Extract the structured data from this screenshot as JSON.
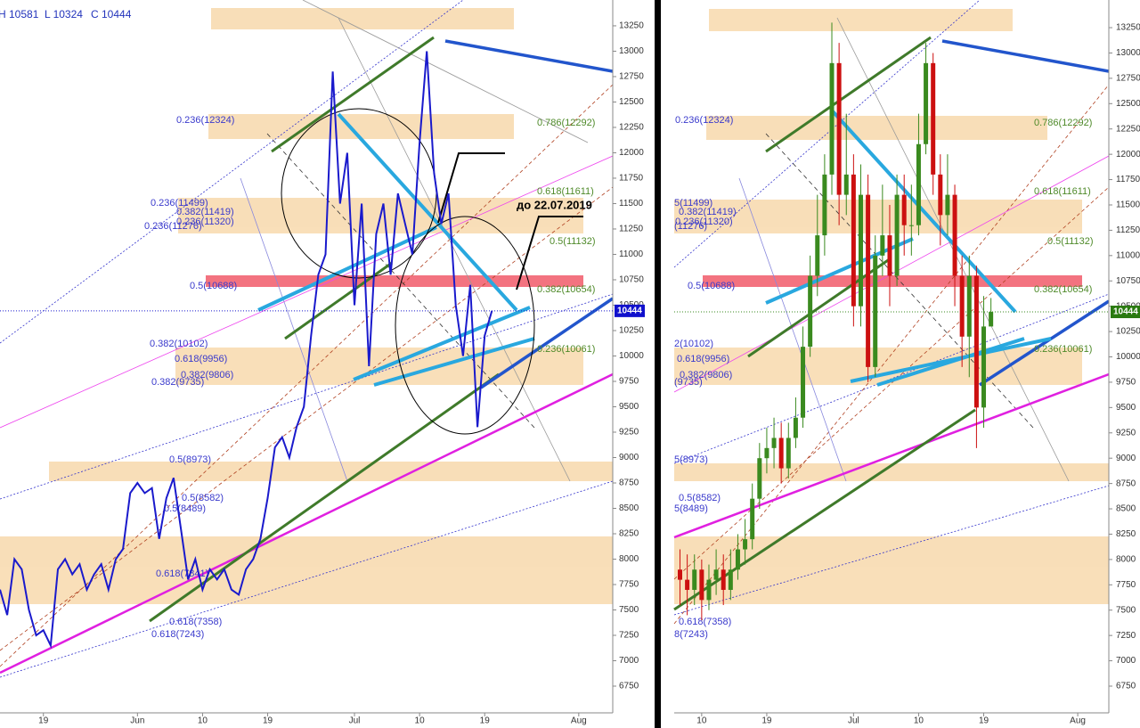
{
  "chart_data": [
    {
      "type": "line",
      "color": "#1a1acc",
      "header": [
        "H 10581",
        "L 10324",
        "C 10444"
      ],
      "annotation": "до 22.07.2019",
      "last_price": 10444,
      "fib_labels": [
        "0.236(12324)",
        "0.786(12292)",
        "0.236(11499)",
        "0.382(11419)",
        "0.236(11320)",
        "0.236(11276)",
        "0.618(11611)",
        "0.5(11132)",
        "0.5(10688)",
        "0.382(10654)",
        "0.382(10102)",
        "0.618(9956)",
        "0.382(9806)",
        "0.382(9735)",
        "0.236(10061)",
        "0.5(8973)",
        "0.5(8582)",
        "0.5(8489)",
        "0.618(7841)",
        "0.618(7358)",
        "0.618(7243)"
      ],
      "x": [
        -6,
        -5,
        -4,
        -3,
        -2,
        -1,
        0,
        1,
        2,
        3,
        4,
        5,
        6,
        7,
        8,
        9,
        10,
        11,
        12,
        13,
        14,
        15,
        16,
        17,
        18,
        19,
        20,
        21,
        22,
        23,
        24,
        25,
        26,
        27,
        28,
        29,
        30,
        31,
        32,
        33,
        34,
        35,
        36,
        37,
        38,
        39,
        40,
        41,
        42,
        43,
        44,
        45,
        46,
        47,
        48,
        49,
        50,
        51,
        52,
        53,
        54,
        55,
        56,
        57,
        58,
        59,
        60,
        61,
        62
      ],
      "values": [
        7700,
        7450,
        8000,
        7900,
        7500,
        7250,
        7300,
        7150,
        7900,
        8000,
        7850,
        7950,
        7700,
        7850,
        7950,
        7700,
        8000,
        8100,
        8650,
        8750,
        8650,
        8700,
        8200,
        8600,
        8800,
        8300,
        7800,
        8000,
        7700,
        7900,
        7800,
        7900,
        7700,
        7650,
        7900,
        8000,
        8200,
        8600,
        9100,
        9200,
        9000,
        9300,
        9500,
        10200,
        10800,
        11000,
        12800,
        11500,
        12000,
        10500,
        11500,
        9900,
        11200,
        11500,
        10800,
        11600,
        11300,
        11000,
        12100,
        13000,
        11800,
        11300,
        11600,
        10500,
        10000,
        10700,
        9300,
        10200,
        10444
      ],
      "xlim": [
        -6,
        78.7
      ],
      "ylim": [
        6487,
        13504
      ],
      "xticks": [
        {
          "value": 0,
          "label": "19"
        },
        {
          "value": 13,
          "label": "Jun"
        },
        {
          "value": 22,
          "label": "10"
        },
        {
          "value": 31,
          "label": "19"
        },
        {
          "value": 43,
          "label": "Jul"
        },
        {
          "value": 52,
          "label": "10"
        },
        {
          "value": 61,
          "label": "19"
        },
        {
          "value": 74,
          "label": "Aug"
        }
      ],
      "yticks": [
        6750,
        7000,
        7250,
        7500,
        7750,
        8000,
        8250,
        8500,
        8750,
        9000,
        9250,
        9500,
        9750,
        10000,
        10250,
        10500,
        10750,
        11000,
        11250,
        11500,
        11750,
        12000,
        12250,
        12500,
        12750,
        13000,
        13250
      ]
    },
    {
      "type": "candlestick",
      "up_color": "#3a8a1f",
      "down_color": "#cc1010",
      "last_price": 10444,
      "fib_labels": [
        "0.236(12324)",
        "0.786(12292)",
        "0.618(11611)",
        "5(11499)",
        "0.382(11419)",
        "0.236(11320)",
        "(11276)",
        "0.5(11132)",
        "0.5(10688)",
        "0.382(10654)",
        "2(10102)",
        "0.618(9956)",
        "0.382(9806)",
        "(9735)",
        "0.236(10061)",
        "5(8973)",
        "0.5(8582)",
        "5(8489)",
        "0.618(7358)",
        "8(7243)"
      ],
      "x": [
        19,
        20,
        21,
        22,
        23,
        24,
        25,
        26,
        27,
        28,
        29,
        30,
        31,
        32,
        33,
        34,
        35,
        36,
        37,
        38,
        39,
        40,
        41,
        42,
        43,
        44,
        45,
        46,
        47,
        48,
        49,
        50,
        51,
        52,
        53,
        54,
        55,
        56,
        57,
        58,
        59,
        60,
        61,
        62
      ],
      "open": [
        7900,
        7800,
        7700,
        7900,
        7600,
        7800,
        7900,
        7700,
        7900,
        8100,
        8200,
        8600,
        9000,
        9100,
        9200,
        8900,
        9200,
        9400,
        10100,
        10800,
        11200,
        11800,
        12900,
        11600,
        11800,
        10500,
        11600,
        9900,
        11000,
        11200,
        10800,
        11600,
        11300,
        11300,
        12100,
        12900,
        11800,
        11400,
        11600,
        10800,
        10200,
        10800,
        9500,
        10300
      ],
      "high": [
        8100,
        8050,
        8050,
        8000,
        7950,
        8100,
        8050,
        8100,
        8250,
        8400,
        8750,
        9150,
        9300,
        9400,
        9350,
        9350,
        9600,
        10300,
        11000,
        11600,
        12000,
        13300,
        13100,
        12400,
        12000,
        11900,
        11800,
        11200,
        11700,
        11500,
        11800,
        11800,
        11700,
        12400,
        13100,
        13000,
        12000,
        12000,
        11700,
        11000,
        11000,
        10900,
        10600,
        10581
      ],
      "low": [
        7550,
        7450,
        7550,
        7400,
        7500,
        7650,
        7550,
        7600,
        7800,
        7950,
        8100,
        8500,
        8850,
        8900,
        8750,
        8800,
        9100,
        9300,
        10000,
        10600,
        11000,
        11600,
        11300,
        11400,
        10300,
        10300,
        9750,
        9800,
        10800,
        10500,
        10700,
        11000,
        11000,
        11200,
        12000,
        11600,
        11100,
        11200,
        10500,
        9900,
        9800,
        9100,
        9300,
        10324
      ],
      "close": [
        7800,
        7700,
        7900,
        7600,
        7800,
        7900,
        7700,
        7900,
        8100,
        8200,
        8600,
        9000,
        9100,
        9200,
        8900,
        9200,
        9400,
        10100,
        10800,
        11200,
        11800,
        12900,
        11600,
        11800,
        10500,
        11600,
        9900,
        11000,
        11200,
        10800,
        11600,
        11300,
        11300,
        12100,
        12900,
        11800,
        11400,
        11600,
        10800,
        10200,
        10800,
        9500,
        10300,
        10444
      ],
      "xlim": [
        18.2,
        78.3
      ],
      "ylim": [
        6486,
        13523
      ],
      "xticks": [
        {
          "value": 22,
          "label": "10"
        },
        {
          "value": 31,
          "label": "19"
        },
        {
          "value": 43,
          "label": "Jul"
        },
        {
          "value": 52,
          "label": "10"
        },
        {
          "value": 61,
          "label": "19"
        },
        {
          "value": 74,
          "label": "Aug"
        }
      ],
      "yticks": [
        6750,
        7000,
        7250,
        7500,
        7750,
        8000,
        8250,
        8500,
        8750,
        9000,
        9250,
        9500,
        9750,
        10000,
        10250,
        10500,
        10750,
        11000,
        11250,
        11500,
        11750,
        12000,
        12250,
        12500,
        12750,
        13000,
        13250
      ]
    }
  ]
}
